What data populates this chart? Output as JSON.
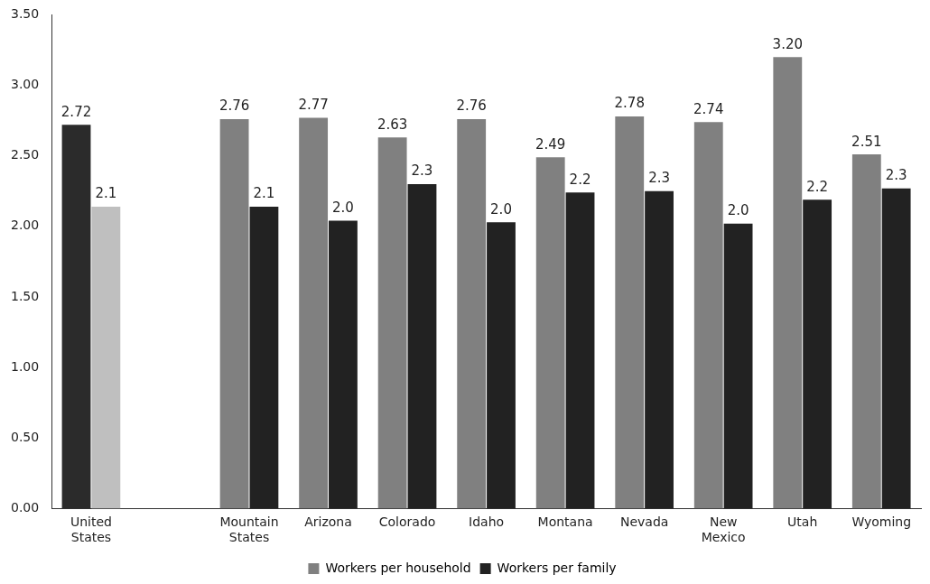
{
  "chart_data": {
    "type": "bar",
    "categories": [
      "United States",
      null,
      "Mountain States",
      "Arizona",
      "Colorado",
      "Idaho",
      "Montana",
      "Nevada",
      "New Mexico",
      "Utah",
      "Wyoming"
    ],
    "series": [
      {
        "name": "Workers per household",
        "color": "#808080",
        "colors": [
          "#2b2b2b",
          null,
          "#808080",
          "#808080",
          "#808080",
          "#808080",
          "#808080",
          "#808080",
          "#808080",
          "#808080",
          "#808080"
        ],
        "values": [
          2.72,
          null,
          2.76,
          2.77,
          2.63,
          2.76,
          2.49,
          2.78,
          2.74,
          3.2,
          2.51
        ],
        "value_labels": [
          "2.72",
          null,
          "2.76",
          "2.77",
          "2.63",
          "2.76",
          "2.49",
          "2.78",
          "2.74",
          "3.20",
          "2.51"
        ]
      },
      {
        "name": "Workers per family",
        "color": "#222222",
        "colors": [
          "#bfbfbf",
          null,
          "#222222",
          "#222222",
          "#222222",
          "#222222",
          "#222222",
          "#222222",
          "#222222",
          "#222222",
          "#222222"
        ],
        "values": [
          2.14,
          null,
          2.14,
          2.04,
          2.3,
          2.03,
          2.24,
          2.25,
          2.02,
          2.19,
          2.27
        ],
        "value_labels": [
          "2.1",
          null,
          "2.1",
          "2.0",
          "2.3",
          "2.0",
          "2.2",
          "2.3",
          "2.0",
          "2.2",
          "2.3"
        ]
      }
    ],
    "ylim": [
      0,
      3.5
    ],
    "yticks": [
      {
        "value": 0,
        "label": "0.00"
      },
      {
        "value": 0.5,
        "label": "0.50"
      },
      {
        "value": 1,
        "label": "1.00"
      },
      {
        "value": 1.5,
        "label": "1.50"
      },
      {
        "value": 2,
        "label": "2.00"
      },
      {
        "value": 2.5,
        "label": "2.50"
      },
      {
        "value": 3,
        "label": "3.00"
      },
      {
        "value": 3.5,
        "label": "3.50"
      }
    ],
    "grid": false,
    "legend": "bottom"
  }
}
